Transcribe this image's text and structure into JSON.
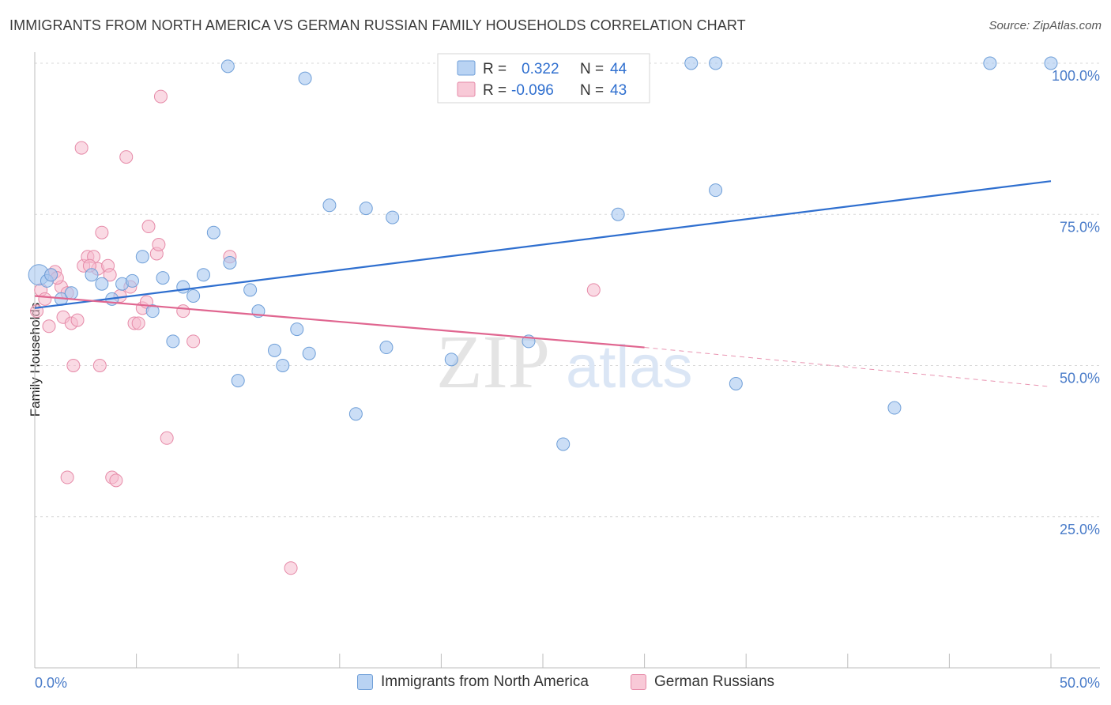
{
  "title": "IMMIGRANTS FROM NORTH AMERICA VS GERMAN RUSSIAN FAMILY HOUSEHOLDS CORRELATION CHART",
  "source": "Source: ZipAtlas.com",
  "watermark": {
    "zip": "ZIP",
    "atlas": "atlas"
  },
  "colors": {
    "blue_fill": "#a8c8f0",
    "blue_stroke": "#6f9fd8",
    "blue_line": "#2f6fcf",
    "pink_fill": "#f6bccd",
    "pink_stroke": "#e68aa8",
    "pink_line": "#e06690",
    "tick_label": "#4a7cc9",
    "grid": "#d8d8d8"
  },
  "legend": {
    "blue": {
      "r_label": "R =",
      "r_value": "0.322",
      "n_label": "N =",
      "n_value": "44"
    },
    "pink": {
      "r_label": "R =",
      "r_value": "-0.096",
      "n_label": "N =",
      "n_value": "43"
    }
  },
  "chart_data": {
    "type": "scatter",
    "title": "IMMIGRANTS FROM NORTH AMERICA VS GERMAN RUSSIAN FAMILY HOUSEHOLDS CORRELATION CHART",
    "xlabel": "",
    "ylabel": "Family Households",
    "xlim": [
      0,
      50
    ],
    "ylim": [
      0,
      100
    ],
    "x_tick_labels": [
      "0.0%",
      "50.0%"
    ],
    "y_tick_labels": [
      "25.0%",
      "50.0%",
      "75.0%",
      "100.0%"
    ],
    "y_tick_values": [
      25,
      50,
      75,
      100
    ],
    "grid": true,
    "legend_position": "top-center",
    "series": [
      {
        "name": "Immigrants from North America",
        "color": "#a8c8f0",
        "R": 0.322,
        "N": 44,
        "trend": {
          "x": [
            0,
            50
          ],
          "y": [
            59.5,
            80.5
          ],
          "style": "solid"
        },
        "points": [
          {
            "x": 0.2,
            "y": 65.0
          },
          {
            "x": 0.6,
            "y": 64.0
          },
          {
            "x": 0.8,
            "y": 65.0
          },
          {
            "x": 1.3,
            "y": 61.0
          },
          {
            "x": 1.8,
            "y": 62.0
          },
          {
            "x": 2.8,
            "y": 65.0
          },
          {
            "x": 3.3,
            "y": 63.5
          },
          {
            "x": 3.8,
            "y": 61.0
          },
          {
            "x": 4.3,
            "y": 63.5
          },
          {
            "x": 4.8,
            "y": 64.0
          },
          {
            "x": 5.3,
            "y": 68.0
          },
          {
            "x": 5.8,
            "y": 59.0
          },
          {
            "x": 6.3,
            "y": 64.5
          },
          {
            "x": 6.8,
            "y": 54.0
          },
          {
            "x": 7.3,
            "y": 63.0
          },
          {
            "x": 7.8,
            "y": 61.5
          },
          {
            "x": 8.3,
            "y": 65.0
          },
          {
            "x": 8.8,
            "y": 72.0
          },
          {
            "x": 9.6,
            "y": 67.0
          },
          {
            "x": 10.0,
            "y": 47.5
          },
          {
            "x": 10.6,
            "y": 62.5
          },
          {
            "x": 11.0,
            "y": 59.0
          },
          {
            "x": 11.8,
            "y": 52.5
          },
          {
            "x": 12.2,
            "y": 50.0
          },
          {
            "x": 12.9,
            "y": 56.0
          },
          {
            "x": 13.5,
            "y": 52.0
          },
          {
            "x": 14.5,
            "y": 76.5
          },
          {
            "x": 15.8,
            "y": 42.0
          },
          {
            "x": 17.3,
            "y": 53.0
          },
          {
            "x": 16.3,
            "y": 76.0
          },
          {
            "x": 17.6,
            "y": 74.5
          },
          {
            "x": 20.5,
            "y": 51.0
          },
          {
            "x": 24.3,
            "y": 54.0
          },
          {
            "x": 26.0,
            "y": 37.0
          },
          {
            "x": 28.7,
            "y": 75.0
          },
          {
            "x": 33.5,
            "y": 79.0
          },
          {
            "x": 34.5,
            "y": 47.0
          },
          {
            "x": 42.3,
            "y": 43.0
          },
          {
            "x": 9.5,
            "y": 99.5
          },
          {
            "x": 13.3,
            "y": 97.5
          },
          {
            "x": 32.3,
            "y": 100.0
          },
          {
            "x": 33.5,
            "y": 100.0
          },
          {
            "x": 47.0,
            "y": 100.0
          },
          {
            "x": 50.0,
            "y": 100.0
          }
        ]
      },
      {
        "name": "German Russians",
        "color": "#f6bccd",
        "R": -0.096,
        "N": 43,
        "trend": {
          "x": [
            0,
            30,
            50
          ],
          "y": [
            61.5,
            53.0,
            46.5
          ],
          "solid_until": 30
        },
        "points": [
          {
            "x": 0.1,
            "y": 59.0
          },
          {
            "x": 0.3,
            "y": 62.5
          },
          {
            "x": 0.5,
            "y": 61.0
          },
          {
            "x": 0.7,
            "y": 56.5
          },
          {
            "x": 1.0,
            "y": 65.5
          },
          {
            "x": 1.3,
            "y": 63.0
          },
          {
            "x": 1.4,
            "y": 58.0
          },
          {
            "x": 1.6,
            "y": 62.0
          },
          {
            "x": 1.8,
            "y": 57.0
          },
          {
            "x": 2.1,
            "y": 57.5
          },
          {
            "x": 2.3,
            "y": 86.0
          },
          {
            "x": 2.4,
            "y": 66.5
          },
          {
            "x": 2.6,
            "y": 68.0
          },
          {
            "x": 2.9,
            "y": 68.0
          },
          {
            "x": 3.1,
            "y": 66.0
          },
          {
            "x": 3.3,
            "y": 72.0
          },
          {
            "x": 3.6,
            "y": 66.5
          },
          {
            "x": 3.7,
            "y": 65.0
          },
          {
            "x": 4.2,
            "y": 61.5
          },
          {
            "x": 4.5,
            "y": 84.5
          },
          {
            "x": 4.7,
            "y": 63.0
          },
          {
            "x": 4.9,
            "y": 57.0
          },
          {
            "x": 5.1,
            "y": 57.0
          },
          {
            "x": 5.3,
            "y": 59.5
          },
          {
            "x": 5.5,
            "y": 60.5
          },
          {
            "x": 5.6,
            "y": 73.0
          },
          {
            "x": 6.0,
            "y": 68.5
          },
          {
            "x": 6.1,
            "y": 70.0
          },
          {
            "x": 6.2,
            "y": 94.5
          },
          {
            "x": 6.5,
            "y": 38.0
          },
          {
            "x": 7.3,
            "y": 59.0
          },
          {
            "x": 7.8,
            "y": 54.0
          },
          {
            "x": 9.6,
            "y": 68.0
          },
          {
            "x": 1.6,
            "y": 31.5
          },
          {
            "x": 3.8,
            "y": 31.5
          },
          {
            "x": 4.0,
            "y": 31.0
          },
          {
            "x": 1.9,
            "y": 50.0
          },
          {
            "x": 3.2,
            "y": 50.0
          },
          {
            "x": 12.6,
            "y": 16.5
          },
          {
            "x": 27.5,
            "y": 62.5
          },
          {
            "x": 0.8,
            "y": 65.0
          },
          {
            "x": 1.1,
            "y": 64.5
          },
          {
            "x": 2.7,
            "y": 66.5
          }
        ]
      }
    ]
  },
  "bottom_legend": [
    "Immigrants from North America",
    "German Russians"
  ]
}
